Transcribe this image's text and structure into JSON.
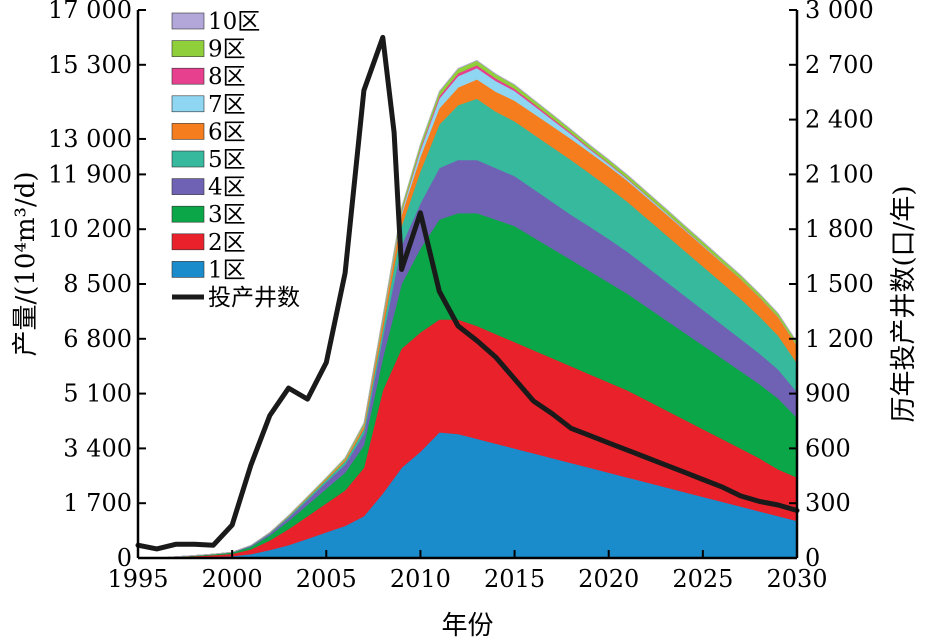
{
  "chart_data": {
    "type": "area",
    "stacked": true,
    "xlabel": "年份",
    "ylabel": "产量/(10⁴m³/d)",
    "ylabel_right": "历年投产井数(口/年)",
    "xlim": [
      1995,
      2030
    ],
    "ylim": [
      0,
      17000
    ],
    "ylim_right": [
      0,
      3000
    ],
    "x_ticks": [
      1995,
      2000,
      2005,
      2010,
      2015,
      2020,
      2025,
      2030
    ],
    "x_tick_labels": [
      "1995",
      "2000",
      "2005",
      "2010",
      "2015",
      "2020",
      "2025",
      "2030"
    ],
    "y_ticks": [
      0,
      1700,
      3400,
      5100,
      6800,
      8500,
      10200,
      11900,
      13000,
      15300,
      17000
    ],
    "y_tick_labels": [
      "0",
      "1 700",
      "3 400",
      "5 100",
      "6 800",
      "8 500",
      "10 200",
      "11 900",
      "13 000",
      "15 300",
      "17 000"
    ],
    "y_ticks_right": [
      0,
      300,
      600,
      900,
      1200,
      1500,
      1800,
      2100,
      2400,
      2700,
      3000
    ],
    "y_tick_labels_right": [
      "0",
      "300",
      "600",
      "900",
      "1 200",
      "1 500",
      "1 800",
      "2 100",
      "2 400",
      "2 700",
      "3 000"
    ],
    "legend_position": "top-left",
    "x": [
      1995,
      1996,
      1997,
      1998,
      1999,
      2000,
      2001,
      2002,
      2003,
      2004,
      2005,
      2006,
      2007,
      2008,
      2009,
      2010,
      2011,
      2012,
      2013,
      2014,
      2015,
      2016,
      2017,
      2018,
      2019,
      2020,
      2021,
      2022,
      2023,
      2024,
      2025,
      2026,
      2027,
      2028,
      2029,
      2030
    ],
    "series": [
      {
        "name": "1区",
        "color": "#1a8ccc",
        "values": [
          0,
          0,
          20,
          30,
          40,
          60,
          120,
          250,
          400,
          600,
          800,
          1000,
          1300,
          2000,
          2800,
          3300,
          3900,
          3850,
          3700,
          3550,
          3400,
          3250,
          3100,
          2950,
          2800,
          2650,
          2500,
          2350,
          2200,
          2050,
          1900,
          1750,
          1600,
          1450,
          1300,
          1150
        ]
      },
      {
        "name": "2区",
        "color": "#e8212b",
        "values": [
          0,
          0,
          10,
          30,
          50,
          70,
          150,
          300,
          500,
          700,
          900,
          1100,
          1500,
          3200,
          3700,
          3700,
          3500,
          3550,
          3500,
          3400,
          3300,
          3200,
          3100,
          3000,
          2900,
          2800,
          2700,
          2550,
          2400,
          2250,
          2100,
          1950,
          1800,
          1650,
          1450,
          1350
        ]
      },
      {
        "name": "3区",
        "color": "#0aa647",
        "values": [
          0,
          0,
          10,
          20,
          30,
          40,
          80,
          150,
          250,
          350,
          450,
          550,
          700,
          1000,
          2000,
          2600,
          3100,
          3300,
          3500,
          3550,
          3600,
          3500,
          3400,
          3300,
          3200,
          3100,
          3000,
          2900,
          2800,
          2700,
          2600,
          2500,
          2400,
          2300,
          2200,
          1850
        ]
      },
      {
        "name": "4区",
        "color": "#6f62b4",
        "values": [
          0,
          0,
          0,
          0,
          0,
          10,
          30,
          60,
          100,
          150,
          200,
          250,
          350,
          650,
          1200,
          1400,
          1600,
          1650,
          1650,
          1600,
          1550,
          1500,
          1450,
          1400,
          1380,
          1350,
          1300,
          1250,
          1200,
          1150,
          1100,
          1050,
          1000,
          950,
          900,
          800
        ]
      },
      {
        "name": "5区",
        "color": "#36b99c",
        "values": [
          0,
          0,
          0,
          0,
          0,
          0,
          10,
          20,
          40,
          60,
          80,
          100,
          150,
          250,
          600,
          1000,
          1350,
          1700,
          1900,
          1750,
          1700,
          1700,
          1700,
          1700,
          1650,
          1600,
          1550,
          1500,
          1450,
          1400,
          1350,
          1300,
          1250,
          1150,
          1050,
          900
        ]
      },
      {
        "name": "6区",
        "color": "#f57d1d",
        "values": [
          0,
          0,
          0,
          0,
          0,
          0,
          5,
          10,
          20,
          30,
          40,
          60,
          100,
          250,
          350,
          450,
          500,
          550,
          600,
          620,
          640,
          650,
          650,
          650,
          650,
          650,
          650,
          650,
          650,
          640,
          630,
          620,
          610,
          590,
          570,
          530
        ]
      },
      {
        "name": "7区",
        "color": "#8fd6f2",
        "values": [
          0,
          0,
          0,
          0,
          0,
          0,
          0,
          0,
          0,
          0,
          0,
          10,
          20,
          40,
          80,
          200,
          300,
          350,
          350,
          330,
          300,
          250,
          200,
          150,
          100,
          80,
          60,
          50,
          40,
          30,
          20,
          15,
          10,
          10,
          10,
          10
        ]
      },
      {
        "name": "8区",
        "color": "#e7408f",
        "values": [
          0,
          0,
          0,
          0,
          0,
          0,
          0,
          0,
          0,
          0,
          0,
          0,
          10,
          20,
          30,
          60,
          80,
          90,
          90,
          80,
          70,
          60,
          50,
          40,
          30,
          25,
          20,
          15,
          10,
          10,
          10,
          5,
          5,
          5,
          5,
          5
        ]
      },
      {
        "name": "9区",
        "color": "#8fcf3a",
        "values": [
          0,
          0,
          0,
          0,
          0,
          0,
          0,
          5,
          10,
          20,
          30,
          40,
          60,
          90,
          120,
          130,
          140,
          140,
          140,
          130,
          120,
          110,
          110,
          100,
          100,
          100,
          100,
          100,
          100,
          100,
          100,
          100,
          100,
          100,
          100,
          100
        ]
      },
      {
        "name": "10区",
        "color": "#b2a7d8",
        "values": [
          0,
          0,
          0,
          0,
          0,
          0,
          0,
          0,
          0,
          0,
          0,
          0,
          0,
          0,
          0,
          0,
          10,
          10,
          10,
          10,
          10,
          10,
          10,
          10,
          10,
          10,
          10,
          10,
          10,
          10,
          10,
          10,
          10,
          10,
          10,
          10
        ]
      }
    ],
    "line_series": {
      "name": "投产井数",
      "color": "#1a1a1a",
      "axis": "right",
      "x": [
        1995,
        1996,
        1997,
        1998,
        1999,
        2000,
        2001,
        2002,
        2003,
        2004,
        2005,
        2006,
        2007,
        2008,
        2008.6,
        2009,
        2010,
        2011,
        2012,
        2013,
        2014,
        2015,
        2016,
        2017,
        2018,
        2019,
        2020,
        2021,
        2022,
        2023,
        2024,
        2025,
        2026,
        2027,
        2028,
        2029,
        2030
      ],
      "values": [
        70,
        50,
        75,
        75,
        70,
        180,
        510,
        780,
        930,
        870,
        1070,
        1560,
        2560,
        2850,
        2330,
        1580,
        1890,
        1460,
        1270,
        1190,
        1100,
        980,
        860,
        790,
        710,
        670,
        630,
        590,
        550,
        510,
        470,
        430,
        390,
        340,
        310,
        290,
        260
      ]
    }
  }
}
